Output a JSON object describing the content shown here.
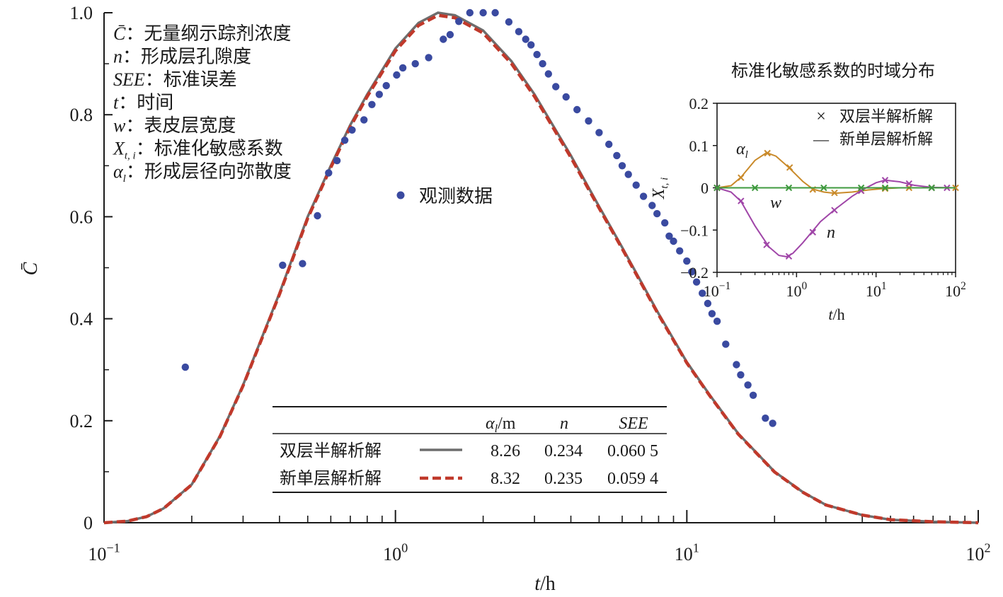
{
  "colors": {
    "observed": "#3a4aa0",
    "two_layer": "#6e6e6e",
    "single_layer": "#c0392b",
    "alpha_l": "#c98a2a",
    "n": "#a046a8",
    "w": "#3f9a3f",
    "axis": "#1a1a1a"
  },
  "chart_data": [
    {
      "type": "scatter+line",
      "xlabel": "t/h",
      "ylabel": "C̄",
      "x_scale": "log",
      "xlim": [
        0.1,
        100
      ],
      "ylim": [
        0,
        1.0
      ],
      "x_ticks": [
        {
          "value": 0.1,
          "base": "10",
          "exp": "−1"
        },
        {
          "value": 1,
          "base": "10",
          "exp": "0"
        },
        {
          "value": 10,
          "base": "10",
          "exp": "1"
        },
        {
          "value": 100,
          "base": "10",
          "exp": "2"
        }
      ],
      "y_ticks": [
        "0",
        "0.2",
        "0.4",
        "0.6",
        "0.8",
        "1.0"
      ],
      "notes": [
        {
          "sym": "C̄",
          "text": "：无量纲示踪剂浓度"
        },
        {
          "sym": "n",
          "text": "：形成层孔隙度"
        },
        {
          "sym": "SEE",
          "text": "：标准误差"
        },
        {
          "sym": "t",
          "text": "：时间"
        },
        {
          "sym": "w",
          "text": "：表皮层宽度"
        },
        {
          "sym": "X_{t,i}",
          "sym_main": "X",
          "sym_sub": "t, i",
          "text": "：标准化敏感系数"
        },
        {
          "sym": "α_l",
          "sym_main": "α",
          "sym_sub": "l",
          "text": "：形成层径向弥散度"
        }
      ],
      "observed_legend": "观测数据",
      "observed": [
        [
          0.19,
          0.305
        ],
        [
          0.41,
          0.505
        ],
        [
          0.48,
          0.508
        ],
        [
          0.54,
          0.602
        ],
        [
          0.59,
          0.686
        ],
        [
          0.63,
          0.71
        ],
        [
          0.67,
          0.75
        ],
        [
          0.71,
          0.77
        ],
        [
          0.78,
          0.79
        ],
        [
          0.83,
          0.82
        ],
        [
          0.88,
          0.84
        ],
        [
          0.93,
          0.857
        ],
        [
          1.01,
          0.878
        ],
        [
          1.06,
          0.892
        ],
        [
          1.17,
          0.9
        ],
        [
          1.3,
          0.912
        ],
        [
          1.46,
          0.948
        ],
        [
          1.54,
          0.957
        ],
        [
          1.65,
          0.983
        ],
        [
          1.8,
          1.0
        ],
        [
          2.0,
          1.0
        ],
        [
          2.2,
          1.0
        ],
        [
          2.45,
          0.982
        ],
        [
          2.65,
          0.963
        ],
        [
          2.8,
          0.948
        ],
        [
          2.92,
          0.937
        ],
        [
          3.06,
          0.918
        ],
        [
          3.2,
          0.9
        ],
        [
          3.35,
          0.88
        ],
        [
          3.55,
          0.855
        ],
        [
          3.85,
          0.835
        ],
        [
          4.2,
          0.81
        ],
        [
          4.6,
          0.788
        ],
        [
          5.0,
          0.765
        ],
        [
          5.4,
          0.742
        ],
        [
          5.75,
          0.72
        ],
        [
          6.0,
          0.7
        ],
        [
          6.3,
          0.683
        ],
        [
          6.7,
          0.662
        ],
        [
          7.1,
          0.64
        ],
        [
          7.6,
          0.622
        ],
        [
          7.9,
          0.606
        ],
        [
          8.4,
          0.588
        ],
        [
          8.7,
          0.562
        ],
        [
          9.0,
          0.552
        ],
        [
          9.45,
          0.533
        ],
        [
          10.0,
          0.513
        ],
        [
          10.4,
          0.492
        ],
        [
          10.8,
          0.472
        ],
        [
          11.3,
          0.45
        ],
        [
          11.8,
          0.43
        ],
        [
          12.2,
          0.41
        ],
        [
          12.7,
          0.395
        ],
        [
          13.6,
          0.35
        ],
        [
          14.8,
          0.31
        ],
        [
          15.3,
          0.29
        ],
        [
          16.2,
          0.27
        ],
        [
          16.9,
          0.25
        ],
        [
          18.6,
          0.205
        ],
        [
          19.7,
          0.195
        ]
      ],
      "curve_samples": [
        [
          0.1,
          0.0
        ],
        [
          0.12,
          0.003
        ],
        [
          0.14,
          0.012
        ],
        [
          0.16,
          0.028
        ],
        [
          0.2,
          0.075
        ],
        [
          0.25,
          0.17
        ],
        [
          0.3,
          0.27
        ],
        [
          0.4,
          0.45
        ],
        [
          0.5,
          0.6
        ],
        [
          0.6,
          0.7
        ],
        [
          0.7,
          0.78
        ],
        [
          0.8,
          0.84
        ],
        [
          1.0,
          0.93
        ],
        [
          1.2,
          0.98
        ],
        [
          1.4,
          1.0
        ],
        [
          1.6,
          0.995
        ],
        [
          2.0,
          0.965
        ],
        [
          2.5,
          0.905
        ],
        [
          3.0,
          0.84
        ],
        [
          4.0,
          0.72
        ],
        [
          5.0,
          0.62
        ],
        [
          6.0,
          0.54
        ],
        [
          8.0,
          0.41
        ],
        [
          10.0,
          0.315
        ],
        [
          12.0,
          0.25
        ],
        [
          15.0,
          0.175
        ],
        [
          20.0,
          0.1
        ],
        [
          25.0,
          0.06
        ],
        [
          30.0,
          0.035
        ],
        [
          40.0,
          0.015
        ],
        [
          50.0,
          0.006
        ],
        [
          70.0,
          0.002
        ],
        [
          100.0,
          0.0
        ]
      ],
      "table": {
        "headers": [
          "α_l/m",
          "n",
          "SEE"
        ],
        "header_alpha_main": "α",
        "header_alpha_sub": "l",
        "header_alpha_unit": "/m",
        "rows": [
          {
            "name": "双层半解析解",
            "values": [
              "8.26",
              "0.234",
              "0.060 5"
            ]
          },
          {
            "name": "新单层解析解",
            "values": [
              "8.32",
              "0.235",
              "0.059 4"
            ]
          }
        ]
      }
    },
    {
      "type": "line",
      "title": "标准化敏感系数的时域分布",
      "xlabel": "t/h",
      "ylabel": "X_{t,i}",
      "ylabel_main": "X",
      "ylabel_sub": "t, i",
      "x_scale": "log",
      "xlim": [
        0.1,
        100
      ],
      "ylim": [
        -0.2,
        0.2
      ],
      "y_ticks": [
        "0.2",
        "0.1",
        "0",
        "−0.1",
        "−0.2"
      ],
      "x_ticks": [
        {
          "value": 0.1,
          "base": "10",
          "exp": "−1"
        },
        {
          "value": 1,
          "base": "10",
          "exp": "0"
        },
        {
          "value": 10,
          "base": "10",
          "exp": "1"
        },
        {
          "value": 100,
          "base": "10",
          "exp": "2"
        }
      ],
      "legend": [
        {
          "marker": "×",
          "label": "双层半解析解"
        },
        {
          "marker": "—",
          "label": "新单层解析解"
        }
      ],
      "series": [
        {
          "name": "α_l",
          "label_main": "α",
          "label_sub": "l",
          "line": [
            [
              0.1,
              0.0
            ],
            [
              0.15,
              0.005
            ],
            [
              0.2,
              0.025
            ],
            [
              0.3,
              0.065
            ],
            [
              0.42,
              0.083
            ],
            [
              0.55,
              0.075
            ],
            [
              0.8,
              0.048
            ],
            [
              1.2,
              0.015
            ],
            [
              1.6,
              -0.003
            ],
            [
              2.2,
              -0.01
            ],
            [
              3.0,
              -0.013
            ],
            [
              5.0,
              -0.01
            ],
            [
              8.0,
              -0.005
            ],
            [
              12.0,
              -0.002
            ],
            [
              20.0,
              0.0
            ],
            [
              50.0,
              0.0
            ],
            [
              100.0,
              0.0
            ]
          ],
          "markers": [
            [
              0.1,
              0.0
            ],
            [
              0.2,
              0.024
            ],
            [
              0.43,
              0.082
            ],
            [
              0.82,
              0.048
            ],
            [
              1.6,
              -0.004
            ],
            [
              3.0,
              -0.012
            ],
            [
              6.5,
              -0.007
            ],
            [
              13.0,
              -0.002
            ],
            [
              26.0,
              0.0
            ],
            [
              50.0,
              0.0
            ],
            [
              100.0,
              0.0
            ]
          ]
        },
        {
          "name": "n",
          "label_main": "n",
          "line": [
            [
              0.1,
              0.0
            ],
            [
              0.15,
              -0.01
            ],
            [
              0.2,
              -0.032
            ],
            [
              0.3,
              -0.09
            ],
            [
              0.45,
              -0.14
            ],
            [
              0.6,
              -0.16
            ],
            [
              0.75,
              -0.163
            ],
            [
              0.9,
              -0.155
            ],
            [
              1.2,
              -0.13
            ],
            [
              2.0,
              -0.08
            ],
            [
              3.0,
              -0.052
            ],
            [
              5.0,
              -0.02
            ],
            [
              7.0,
              -0.003
            ],
            [
              10.0,
              0.012
            ],
            [
              13.0,
              0.018
            ],
            [
              20.0,
              0.014
            ],
            [
              30.0,
              0.006
            ],
            [
              50.0,
              0.001
            ],
            [
              100.0,
              0.0
            ]
          ],
          "markers": [
            [
              0.1,
              0.0
            ],
            [
              0.2,
              -0.031
            ],
            [
              0.42,
              -0.135
            ],
            [
              0.8,
              -0.162
            ],
            [
              1.6,
              -0.105
            ],
            [
              3.0,
              -0.053
            ],
            [
              6.5,
              -0.007
            ],
            [
              13.0,
              0.018
            ],
            [
              26.0,
              0.01
            ],
            [
              50.0,
              0.0
            ],
            [
              78.0,
              0.0
            ]
          ]
        },
        {
          "name": "w",
          "label_main": "w",
          "line": [
            [
              0.1,
              0.0
            ],
            [
              100.0,
              0.0
            ]
          ],
          "markers": [
            [
              0.1,
              0.0
            ],
            [
              0.3,
              0.0
            ],
            [
              0.8,
              0.0
            ],
            [
              2.2,
              0.0
            ],
            [
              6.5,
              0.0
            ],
            [
              13.0,
              0.0
            ],
            [
              50.0,
              0.0
            ]
          ]
        }
      ]
    }
  ]
}
